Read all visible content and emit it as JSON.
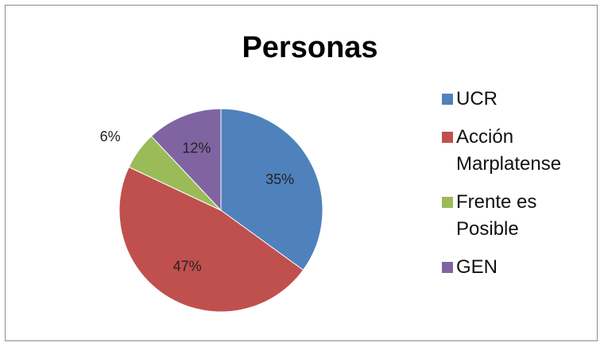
{
  "chart_data": {
    "type": "pie",
    "title": "Personas",
    "categories": [
      "UCR",
      "Acción Marplatense",
      "Frente es Posible",
      "GEN"
    ],
    "values": [
      35,
      47,
      6,
      12
    ],
    "value_labels": [
      "35%",
      "47%",
      "6%",
      "12%"
    ],
    "colors": [
      "#4f81bd",
      "#c0504d",
      "#9bbb59",
      "#8064a2"
    ],
    "legend": "right"
  }
}
